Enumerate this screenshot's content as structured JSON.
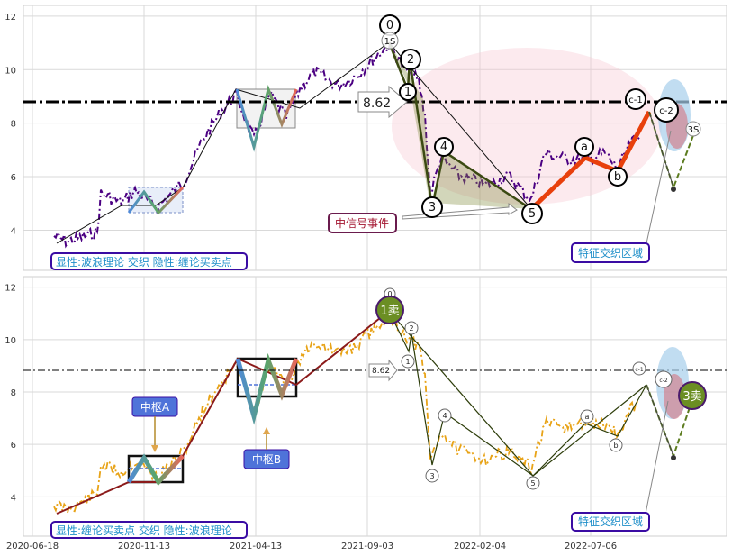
{
  "chart_data": [
    {
      "panel": "top",
      "type": "line",
      "x_ticks": [
        "2020-06-18",
        "2020-11-13",
        "2021-04-13",
        "2021-09-03",
        "2022-02-04",
        "2022-07-06"
      ],
      "y_ticks": [
        4,
        6,
        8,
        10,
        12
      ],
      "ylim": [
        2.5,
        12.4
      ],
      "grid": true,
      "level_line": 8.62,
      "level_label": "8.62",
      "wave_points": [
        {
          "label": "0",
          "x": "2021-09-03",
          "y": 10.7
        },
        {
          "label": "1S",
          "x": "2021-09-03",
          "y": 10.6
        },
        {
          "label": "2",
          "x": "2021-10-20",
          "y": 9.9
        },
        {
          "label": "1",
          "x": "2021-10-12",
          "y": 9.0
        },
        {
          "label": "3",
          "x": "2021-12-15",
          "y": 4.7
        },
        {
          "label": "4",
          "x": "2021-12-28",
          "y": 6.6
        },
        {
          "label": "5",
          "x": "2022-05-10",
          "y": 4.5
        },
        {
          "label": "a",
          "x": "2022-07-08",
          "y": 6.7
        },
        {
          "label": "b",
          "x": "2022-08-10",
          "y": 6.0
        },
        {
          "label": "c-1",
          "x": "2022-08-18",
          "y": 8.7
        },
        {
          "label": "c-2",
          "x": "2022-09-05",
          "y": 8.3
        },
        {
          "label": "3S",
          "x": "2022-09-25",
          "y": 7.4
        }
      ],
      "annotations": {
        "signal_event": "中信号事件",
        "feature_zone": "特征交织区域",
        "caption": "显性:波浪理论 交织 隐性:缠论买卖点"
      }
    },
    {
      "panel": "bottom",
      "type": "line",
      "x_ticks": [
        "2020-06-18",
        "2020-11-13",
        "2021-04-13",
        "2021-09-03",
        "2022-02-04",
        "2022-07-06"
      ],
      "y_ticks": [
        4,
        6,
        8,
        10,
        12
      ],
      "ylim": [
        2.5,
        12.4
      ],
      "grid": true,
      "level_line": 8.62,
      "level_label": "8.62",
      "signals": [
        {
          "label": "1卖",
          "x": "2021-09-03",
          "y": 10.9
        },
        {
          "label": "3卖",
          "x": "2022-09-25",
          "y": 7.6
        }
      ],
      "pivots": [
        {
          "label": "中枢A",
          "low": 4.5,
          "high": 5.4
        },
        {
          "label": "中枢B",
          "low": 7.6,
          "high": 9.1
        }
      ],
      "wave_points": [
        {
          "label": "0",
          "x": "2021-09-03",
          "y": 10.9
        },
        {
          "label": "2",
          "x": "2021-10-20",
          "y": 10.1
        },
        {
          "label": "1",
          "x": "2021-10-12",
          "y": 9.2
        },
        {
          "label": "3",
          "x": "2021-12-15",
          "y": 4.7
        },
        {
          "label": "4",
          "x": "2021-12-28",
          "y": 6.7
        },
        {
          "label": "5",
          "x": "2022-05-10",
          "y": 4.5
        },
        {
          "label": "a",
          "x": "2022-07-08",
          "y": 6.6
        },
        {
          "label": "b",
          "x": "2022-08-10",
          "y": 5.8
        },
        {
          "label": "c-1",
          "x": "2022-08-18",
          "y": 8.6
        },
        {
          "label": "c-2",
          "x": "2022-09-05",
          "y": 8.2
        }
      ],
      "annotations": {
        "feature_zone": "特征交织区域",
        "caption": "显性:缠论买卖点 交织 隐性:波浪理论"
      }
    }
  ],
  "colors": {
    "price_top": "#4b0082",
    "price_bottom": "#e8a317",
    "trend_red": "#e8400c",
    "wave_olive": "#6b7d2a",
    "annotation_border": "#3a0ca3",
    "caption_text": "#1f8fc9",
    "pivot_box": "#4f73d9",
    "sell_badge": "#6b8e23"
  }
}
